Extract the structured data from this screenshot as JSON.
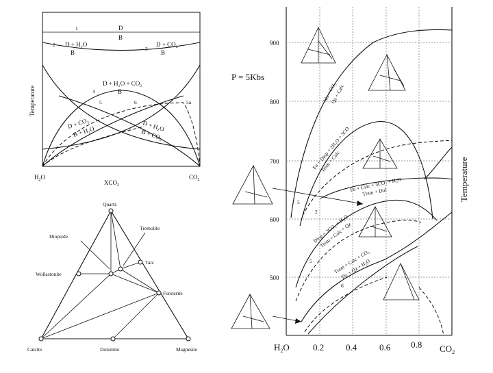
{
  "top_diagram": {
    "y_axis_label": "Temperature",
    "x_axis_label": "XCO",
    "x_axis_sub": "2",
    "left_end": "H",
    "left_end_sub": "2",
    "left_end_rest": "O",
    "right_end": "CO",
    "right_end_sub": "2",
    "reactions": [
      {
        "num": "1",
        "top": "D",
        "bottom": "B"
      },
      {
        "num": "2",
        "top": "D + H₂O",
        "bottom": "B"
      },
      {
        "num": "3",
        "top": "D + CO₂",
        "bottom": "B"
      },
      {
        "num": "4",
        "top": "D + H₂O + CO₂",
        "bottom": "B"
      },
      {
        "num": "5",
        "top": "D + CO₂",
        "bottom": "B + H₂O"
      },
      {
        "num": "6",
        "top": "D + H₂O",
        "bottom": "B + CO₂"
      }
    ],
    "extra_label": "5a"
  },
  "triangle_diagram": {
    "vertices": {
      "top": "Quartz",
      "left": "Calcite",
      "right": "Magnesite"
    },
    "points": [
      "Diopside",
      "Tremolite",
      "Talc",
      "Wollastonite",
      "Forsterite",
      "Dolomite"
    ]
  },
  "right_chart": {
    "pressure_label": "P = 5Kbs",
    "y_axis_label": "Temperature",
    "y_ticks": [
      "900",
      "800",
      "700",
      "600",
      "500"
    ],
    "x_ticks": [
      "0.2",
      "0.4",
      "0.6",
      "0.8"
    ],
    "x_left": "H",
    "x_left_sub": "2",
    "x_left_rest": "O",
    "x_right": "CO",
    "x_right_sub": "2",
    "curve_labels": [
      "Wo + CO₂",
      "Qz + Calc",
      "Fo + Diop + 2H₂O + 3CO",
      "Trem + Calc",
      "Fo + Calc + 3CO₂ + H₂O",
      "Trem + Dol",
      "Diop + 3CO₂ + H₂O",
      "Trem + Calc + Qz",
      "Trem + Calc + CO₂",
      "Tlc + Qz + H₂O"
    ],
    "small_numbers": [
      "5",
      "2",
      "5",
      "6"
    ]
  }
}
